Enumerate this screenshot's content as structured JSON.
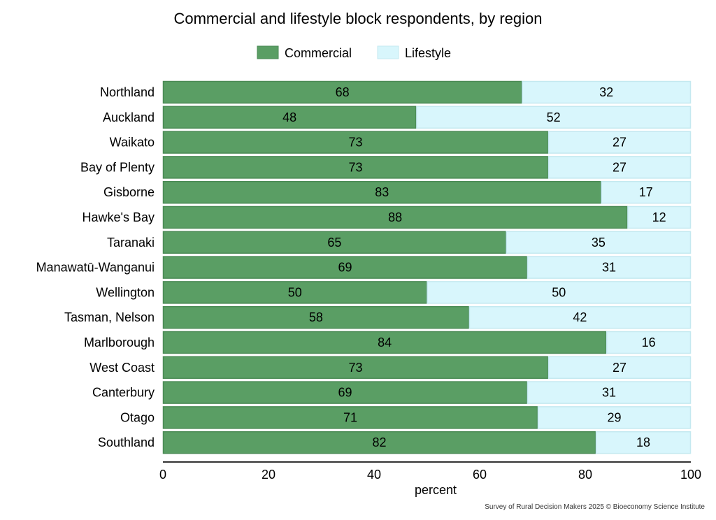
{
  "chart_data": {
    "type": "bar",
    "orientation": "horizontal",
    "stacked": true,
    "title": "Commercial and lifestyle block respondents, by region",
    "xlabel": "percent",
    "ylabel": "",
    "xlim": [
      0,
      100
    ],
    "xticks": [
      0,
      20,
      40,
      60,
      80,
      100
    ],
    "legend_position": "top",
    "categories": [
      "Northland",
      "Auckland",
      "Waikato",
      "Bay of Plenty",
      "Gisborne",
      "Hawke's Bay",
      "Taranaki",
      "Manawatū-Wanganui",
      "Wellington",
      "Tasman, Nelson",
      "Marlborough",
      "West Coast",
      "Canterbury",
      "Otago",
      "Southland"
    ],
    "series": [
      {
        "name": "Commercial",
        "color": "#5a9e64",
        "border": "#4a8a54",
        "values": [
          68,
          48,
          73,
          73,
          83,
          88,
          65,
          69,
          50,
          58,
          84,
          73,
          69,
          71,
          82
        ]
      },
      {
        "name": "Lifestyle",
        "color": "#d8f6fc",
        "border": "#c4e9f0",
        "values": [
          32,
          52,
          27,
          27,
          17,
          12,
          35,
          31,
          50,
          42,
          16,
          27,
          31,
          29,
          18
        ]
      }
    ],
    "caption": "Survey of Rural Decision Makers 2025 © Bioeconomy Science Institute"
  }
}
